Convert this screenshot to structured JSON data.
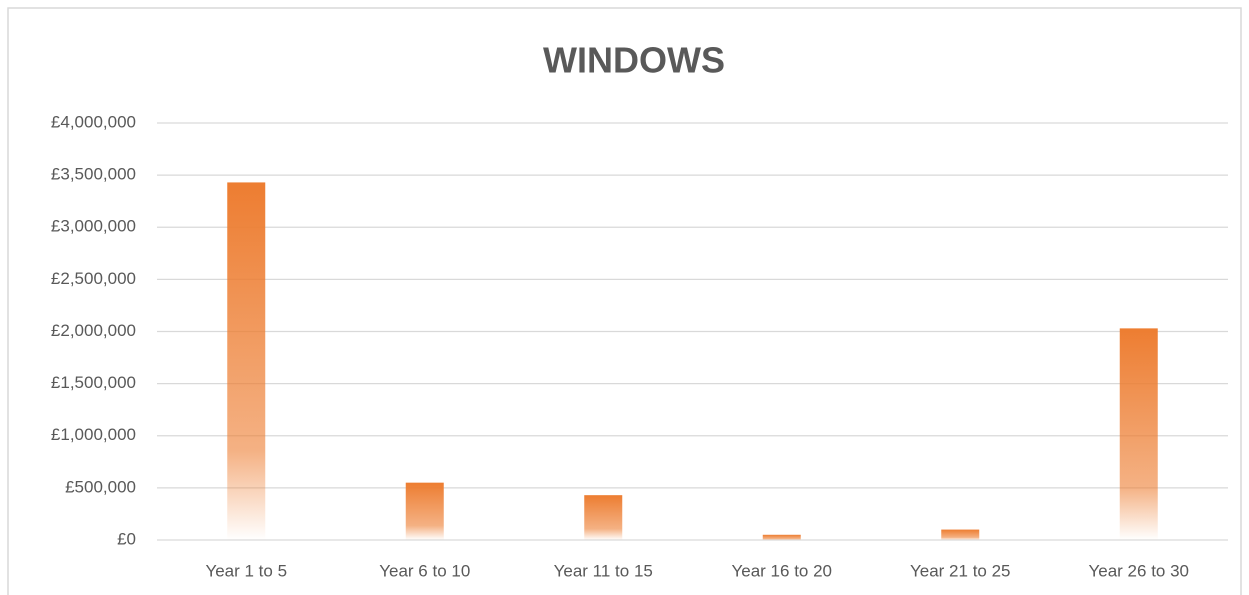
{
  "chart_data": {
    "type": "bar",
    "title": "WINDOWS",
    "categories": [
      "Year 1 to 5",
      "Year 6 to 10",
      "Year 11 to 15",
      "Year 16 to 20",
      "Year 21 to 25",
      "Year 26 to 30"
    ],
    "values": [
      3430000,
      550000,
      430000,
      50000,
      100000,
      2030000
    ],
    "color": "#ed7d31",
    "ylim": [
      0,
      4000000
    ],
    "yticks": [
      {
        "value": 0,
        "label": "£0"
      },
      {
        "value": 500000,
        "label": "£500,000"
      },
      {
        "value": 1000000,
        "label": "£1,000,000"
      },
      {
        "value": 1500000,
        "label": "£1,500,000"
      },
      {
        "value": 2000000,
        "label": "£2,000,000"
      },
      {
        "value": 2500000,
        "label": "£2,500,000"
      },
      {
        "value": 3000000,
        "label": "£3,000,000"
      },
      {
        "value": 3500000,
        "label": "£3,500,000"
      },
      {
        "value": 4000000,
        "label": "£4,000,000"
      }
    ],
    "grid": true
  }
}
